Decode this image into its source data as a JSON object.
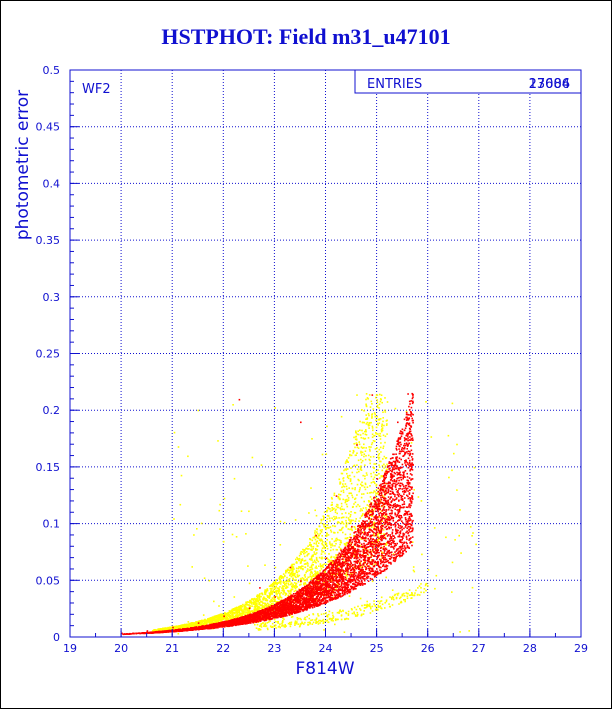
{
  "chart_data": {
    "type": "scatter",
    "title": "HSTPHOT: Field m31_u47101",
    "xlabel": "F814W",
    "ylabel": "photometric error",
    "xlim": [
      19,
      29
    ],
    "ylim": [
      0,
      0.5
    ],
    "x_ticks": [
      "19",
      "20",
      "21",
      "22",
      "23",
      "24",
      "25",
      "26",
      "27",
      "28",
      "29"
    ],
    "y_ticks": [
      "0",
      "0.05",
      "0.1",
      "0.15",
      "0.2",
      "0.25",
      "0.3",
      "0.35",
      "0.4",
      "0.45",
      "0.5"
    ],
    "grid": true,
    "annotation": "WF2",
    "stats_box": {
      "label": "ENTRIES",
      "values": [
        "17684",
        "23006"
      ]
    },
    "series": [
      {
        "color": "#ffff00",
        "description_points": [
          [
            20.8,
            0.006
          ],
          [
            21.0,
            0.01
          ],
          [
            21.3,
            0.014
          ],
          [
            21.6,
            0.02
          ],
          [
            21.9,
            0.028
          ],
          [
            22.2,
            0.036
          ],
          [
            22.5,
            0.048
          ],
          [
            22.8,
            0.064
          ],
          [
            23.1,
            0.082
          ],
          [
            23.4,
            0.104
          ],
          [
            23.7,
            0.132
          ],
          [
            24.0,
            0.162
          ],
          [
            24.3,
            0.195
          ],
          [
            24.6,
            0.214
          ],
          [
            25.0,
            0.214
          ],
          [
            23.3,
            0.02
          ],
          [
            23.8,
            0.013
          ],
          [
            24.3,
            0.02
          ],
          [
            24.8,
            0.032
          ],
          [
            25.3,
            0.042
          ],
          [
            26.0,
            0.06
          ],
          [
            26.6,
            0.09
          ],
          [
            26.9,
            0.15
          ]
        ]
      },
      {
        "color": "#ff0000",
        "description_points": [
          [
            20.0,
            0.004
          ],
          [
            20.5,
            0.006
          ],
          [
            21.0,
            0.009
          ],
          [
            21.5,
            0.013
          ],
          [
            22.0,
            0.019
          ],
          [
            22.5,
            0.026
          ],
          [
            23.0,
            0.036
          ],
          [
            23.5,
            0.05
          ],
          [
            24.0,
            0.07
          ],
          [
            24.5,
            0.098
          ],
          [
            25.0,
            0.14
          ],
          [
            25.4,
            0.19
          ],
          [
            25.6,
            0.215
          ],
          [
            22.7,
            0.044
          ],
          [
            23.3,
            0.062
          ],
          [
            23.8,
            0.09
          ],
          [
            24.2,
            0.125
          ],
          [
            24.6,
            0.17
          ],
          [
            24.9,
            0.214
          ],
          [
            23.5,
            0.19
          ],
          [
            22.3,
            0.21
          ]
        ]
      }
    ]
  }
}
